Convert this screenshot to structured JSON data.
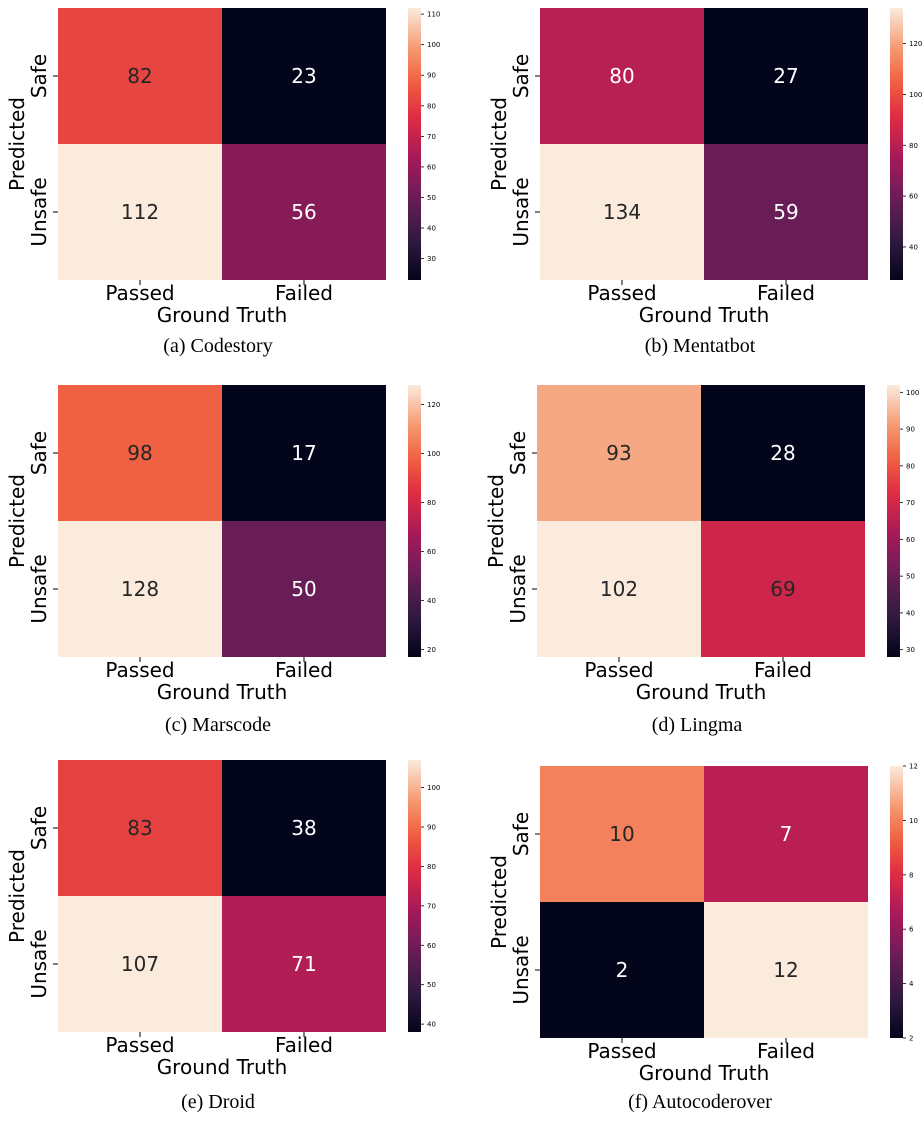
{
  "chart_data": [
    {
      "type": "heatmap",
      "caption": "(a) Codestory",
      "xlabel": "Ground Truth",
      "ylabel": "Predicted",
      "x_categories": [
        "Passed",
        "Failed"
      ],
      "y_categories": [
        "Safe",
        "Unsafe"
      ],
      "values": [
        [
          82,
          23
        ],
        [
          112,
          56
        ]
      ],
      "vmin": 23,
      "vmax": 112,
      "colorbar_ticks": [
        30,
        40,
        50,
        60,
        70,
        80,
        90,
        100,
        110
      ],
      "colormap": "rocket"
    },
    {
      "type": "heatmap",
      "caption": "(b) Mentatbot",
      "xlabel": "Ground Truth",
      "ylabel": "Predicted",
      "x_categories": [
        "Passed",
        "Failed"
      ],
      "y_categories": [
        "Safe",
        "Unsafe"
      ],
      "values": [
        [
          80,
          27
        ],
        [
          134,
          59
        ]
      ],
      "vmin": 27,
      "vmax": 134,
      "colorbar_ticks": [
        40,
        60,
        80,
        100,
        120
      ],
      "colormap": "rocket"
    },
    {
      "type": "heatmap",
      "caption": "(c) Marscode",
      "xlabel": "Ground Truth",
      "ylabel": "Predicted",
      "x_categories": [
        "Passed",
        "Failed"
      ],
      "y_categories": [
        "Safe",
        "Unsafe"
      ],
      "values": [
        [
          98,
          17
        ],
        [
          128,
          50
        ]
      ],
      "vmin": 17,
      "vmax": 128,
      "colorbar_ticks": [
        20,
        40,
        60,
        80,
        100,
        120
      ],
      "colormap": "rocket"
    },
    {
      "type": "heatmap",
      "caption": "(d) Lingma",
      "xlabel": "Ground Truth",
      "ylabel": "Predicted",
      "x_categories": [
        "Passed",
        "Failed"
      ],
      "y_categories": [
        "Safe",
        "Unsafe"
      ],
      "values": [
        [
          93,
          28
        ],
        [
          102,
          69
        ]
      ],
      "vmin": 28,
      "vmax": 102,
      "colorbar_ticks": [
        30,
        40,
        50,
        60,
        70,
        80,
        90,
        100
      ],
      "colormap": "rocket"
    },
    {
      "type": "heatmap",
      "caption": "(e) Droid",
      "xlabel": "Ground Truth",
      "ylabel": "Predicted",
      "x_categories": [
        "Passed",
        "Failed"
      ],
      "y_categories": [
        "Safe",
        "Unsafe"
      ],
      "values": [
        [
          83,
          38
        ],
        [
          107,
          71
        ]
      ],
      "vmin": 38,
      "vmax": 107,
      "colorbar_ticks": [
        40,
        50,
        60,
        70,
        80,
        90,
        100
      ],
      "colormap": "rocket"
    },
    {
      "type": "heatmap",
      "caption": "(f) Autocoderover",
      "xlabel": "Ground Truth",
      "ylabel": "Predicted",
      "x_categories": [
        "Passed",
        "Failed"
      ],
      "y_categories": [
        "Safe",
        "Unsafe"
      ],
      "values": [
        [
          10,
          7
        ],
        [
          2,
          12
        ]
      ],
      "vmin": 2,
      "vmax": 12,
      "colorbar_ticks": [
        2,
        4,
        6,
        8,
        10,
        12
      ],
      "colormap": "rocket"
    }
  ]
}
